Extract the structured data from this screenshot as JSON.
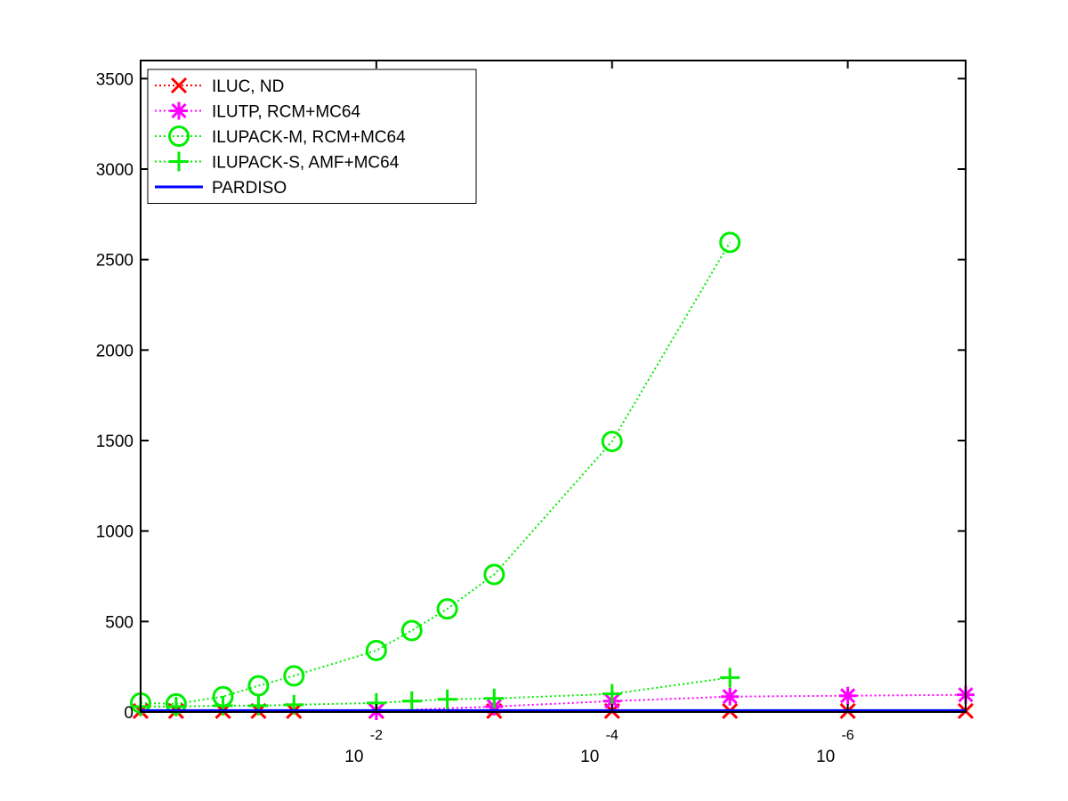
{
  "chart_data": {
    "type": "line",
    "title": "",
    "xlabel": "",
    "ylabel": "",
    "x_scale": "log",
    "x_direction": "decreasing",
    "xlim": [
      1,
      1e-07
    ],
    "ylim": [
      0,
      3600
    ],
    "grid": false,
    "legend_position": "top-left",
    "x_ticks": [
      {
        "value": 0.01,
        "base": "10",
        "exponent": "-2"
      },
      {
        "value": 0.0001,
        "base": "10",
        "exponent": "-4"
      },
      {
        "value": 1e-06,
        "base": "10",
        "exponent": "-6"
      }
    ],
    "y_ticks": [
      {
        "value": 0,
        "label": "0"
      },
      {
        "value": 500,
        "label": "500"
      },
      {
        "value": 1000,
        "label": "1000"
      },
      {
        "value": 1500,
        "label": "1500"
      },
      {
        "value": 2000,
        "label": "2000"
      },
      {
        "value": 2500,
        "label": "2500"
      },
      {
        "value": 3000,
        "label": "3000"
      },
      {
        "value": 3500,
        "label": "3500"
      }
    ],
    "series": [
      {
        "name": "ILUC,  ND",
        "color": "#ff0000",
        "marker": "x",
        "line_style": "dotted",
        "points": [
          [
            1,
            5
          ],
          [
            0.5,
            5
          ],
          [
            0.2,
            5
          ],
          [
            0.1,
            5
          ],
          [
            0.05,
            5
          ],
          [
            0.01,
            5
          ],
          [
            0.001,
            5
          ],
          [
            0.0001,
            5
          ],
          [
            1e-05,
            5
          ],
          [
            1e-06,
            5
          ],
          [
            1e-07,
            5
          ]
        ]
      },
      {
        "name": "ILUTP, RCM+MC64",
        "color": "#ff00ff",
        "marker": "asterisk",
        "line_style": "dotted",
        "points": [
          [
            0.01,
            5
          ],
          [
            0.001,
            30
          ],
          [
            0.0001,
            60
          ],
          [
            1e-05,
            85
          ],
          [
            1e-06,
            90
          ],
          [
            1e-07,
            95
          ]
        ]
      },
      {
        "name": "ILUPACK-M, RCM+MC64",
        "color": "#00ee00",
        "marker": "circle",
        "line_style": "dotted",
        "points": [
          [
            1,
            50
          ],
          [
            0.5,
            45
          ],
          [
            0.2,
            85
          ],
          [
            0.1,
            145
          ],
          [
            0.05,
            200
          ],
          [
            0.01,
            340
          ],
          [
            0.005,
            450
          ],
          [
            0.0025,
            570
          ],
          [
            0.001,
            760
          ],
          [
            0.0001,
            1495
          ],
          [
            1e-05,
            2595
          ]
        ]
      },
      {
        "name": "ILUPACK-S, AMF+MC64",
        "color": "#00ee00",
        "marker": "plus",
        "line_style": "dotted",
        "points": [
          [
            1,
            30
          ],
          [
            0.5,
            30
          ],
          [
            0.2,
            35
          ],
          [
            0.1,
            35
          ],
          [
            0.05,
            40
          ],
          [
            0.01,
            50
          ],
          [
            0.005,
            60
          ],
          [
            0.0025,
            70
          ],
          [
            0.001,
            75
          ],
          [
            0.0001,
            100
          ],
          [
            1e-05,
            190
          ]
        ]
      },
      {
        "name": "PARDISO",
        "color": "#0000ff",
        "marker": "none",
        "line_style": "solid",
        "points": [
          [
            1,
            8
          ],
          [
            1e-07,
            8
          ]
        ]
      }
    ]
  }
}
